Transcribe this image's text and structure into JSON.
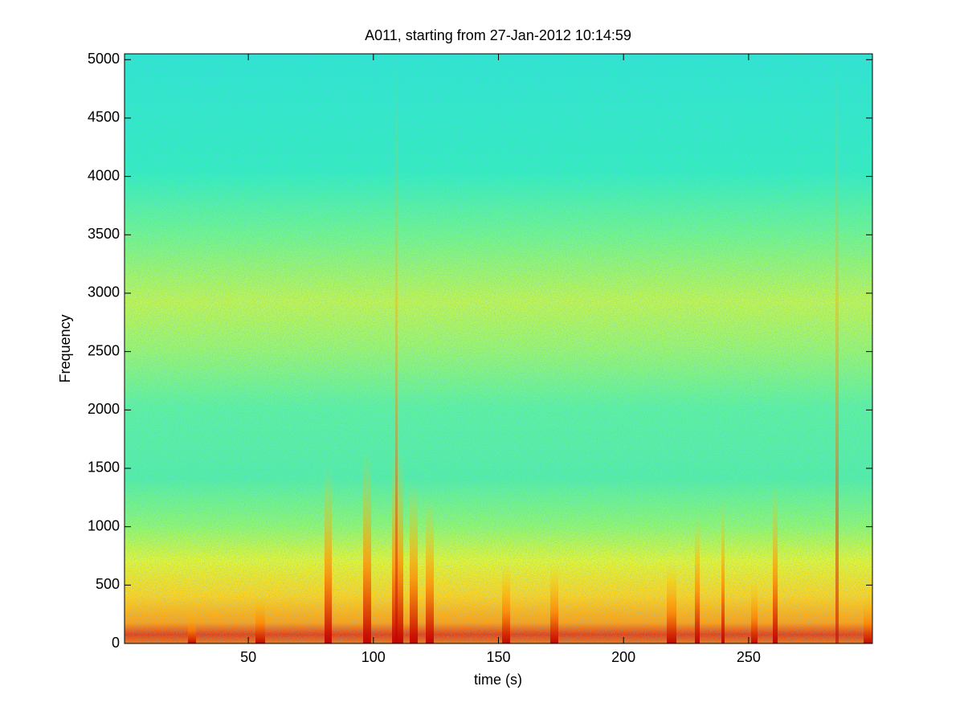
{
  "chart_data": {
    "type": "spectrogram",
    "title": "A011, starting from 27-Jan-2012 10:14:59",
    "x_label": "time (s)",
    "y_label": "Frequency",
    "colormap": "jet",
    "xlim": [
      0.5,
      299.5
    ],
    "xticks": [
      50,
      100,
      150,
      200,
      250
    ],
    "ylim": [
      0,
      5050
    ],
    "yticks": [
      0,
      500,
      1000,
      1500,
      2000,
      2500,
      3000,
      3500,
      4000,
      4500,
      5000
    ]
  }
}
